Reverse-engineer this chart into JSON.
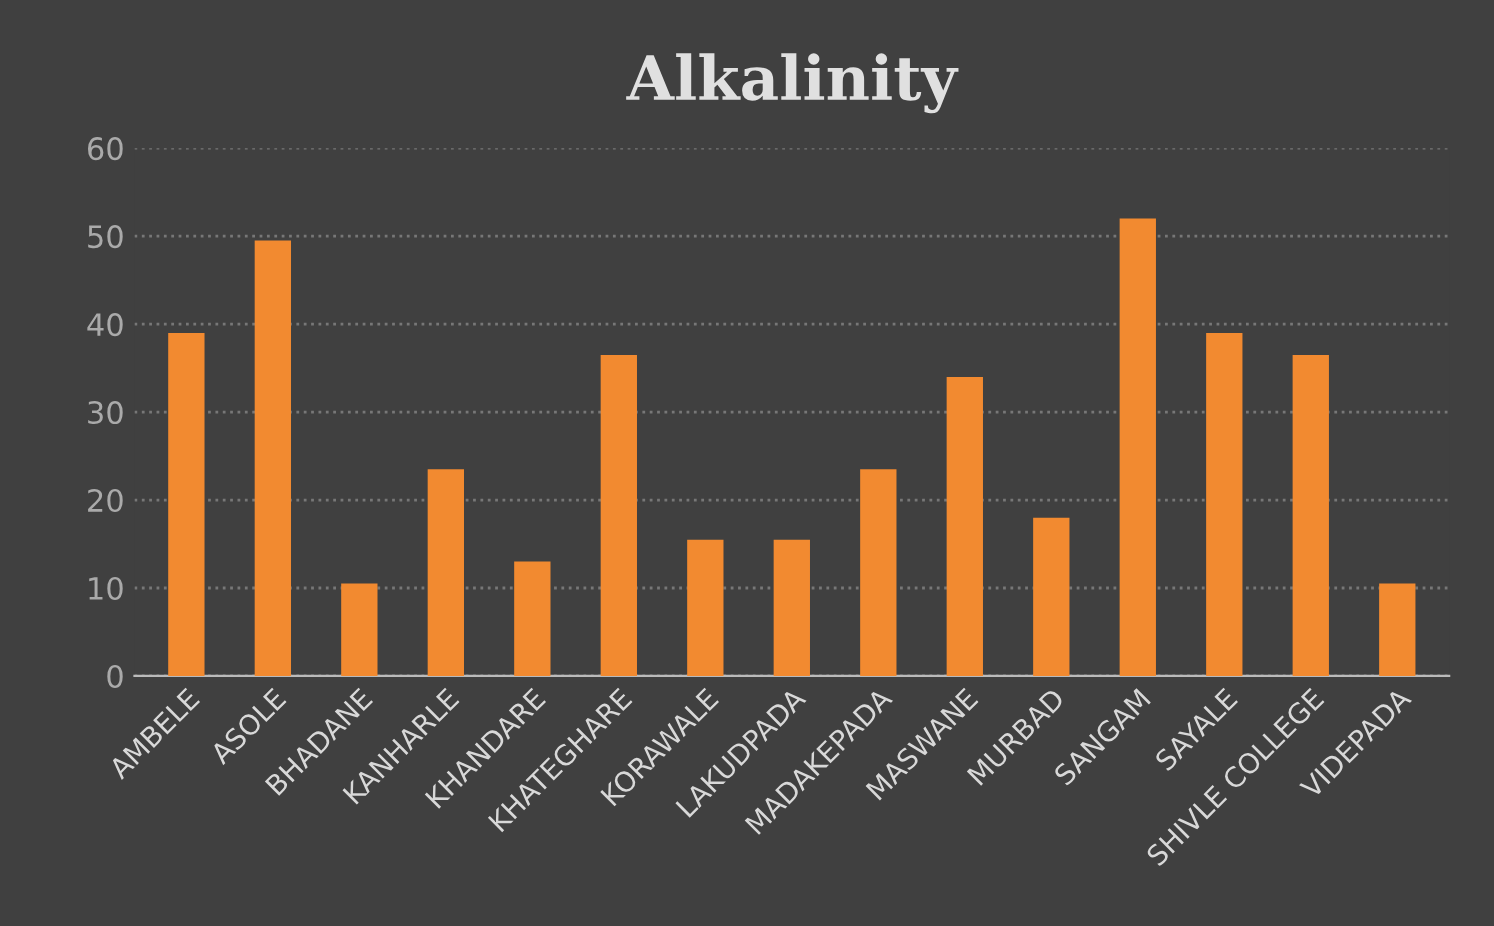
{
  "chart_data": {
    "type": "bar",
    "title": "Alkalinity",
    "categories": [
      "AMBELE",
      "ASOLE",
      "BHADANE",
      "KANHARLE",
      "KHANDARE",
      "KHATEGHARE",
      "KORAWALE",
      "LAKUDPADA",
      "MADAKEPADA",
      "MASWANE",
      "MURBAD",
      "SANGAM",
      "SAYALE",
      "SHIVLE COLLEGE",
      "VIDEPADA"
    ],
    "values": [
      39,
      49.5,
      10.5,
      23.5,
      13,
      36.5,
      15.5,
      15.5,
      23.5,
      34,
      18,
      52,
      39,
      36.5,
      10.5
    ],
    "color": "#f28a30",
    "ylim": [
      0,
      60
    ],
    "yticks": [
      0,
      10,
      20,
      30,
      40,
      50,
      60
    ],
    "grid": "y"
  }
}
